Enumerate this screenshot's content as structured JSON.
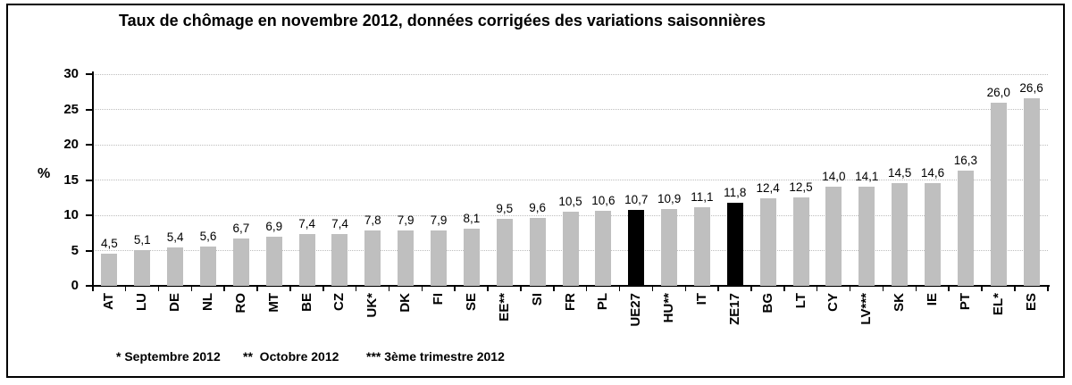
{
  "chart_data": {
    "type": "bar",
    "title": "Taux de chômage en novembre 2012, données corrigées des variations saisonnières",
    "ylabel": "%",
    "ylim": [
      0,
      30
    ],
    "yticks": [
      0,
      5,
      10,
      15,
      20,
      25,
      30
    ],
    "grid": "horizontal-dotted",
    "legend": "none",
    "decimal_separator": ",",
    "categories": [
      "AT",
      "LU",
      "DE",
      "NL",
      "RO",
      "MT",
      "BE",
      "CZ",
      "UK*",
      "DK",
      "FI",
      "SE",
      "EE**",
      "SI",
      "FR",
      "PL",
      "UE27",
      "HU**",
      "IT",
      "ZE17",
      "BG",
      "LT",
      "CY",
      "LV***",
      "SK",
      "IE",
      "PT",
      "EL*",
      "ES"
    ],
    "values": [
      4.5,
      5.1,
      5.4,
      5.6,
      6.7,
      6.9,
      7.4,
      7.4,
      7.8,
      7.9,
      7.9,
      8.1,
      9.5,
      9.6,
      10.5,
      10.6,
      10.7,
      10.9,
      11.1,
      11.8,
      12.4,
      12.5,
      14.0,
      14.1,
      14.5,
      14.6,
      16.3,
      26.0,
      26.6
    ],
    "display_values": [
      "4,5",
      "5,1",
      "5,4",
      "5,6",
      "6,7",
      "6,9",
      "7,4",
      "7,4",
      "7,8",
      "7,9",
      "7,9",
      "8,1",
      "9,5",
      "9,6",
      "10,5",
      "10,6",
      "10,7",
      "10,9",
      "11,1",
      "11,8",
      "12,4",
      "12,5",
      "14,0",
      "14,1",
      "14,5",
      "14,6",
      "16,3",
      "26,0",
      "26,6"
    ],
    "highlighted": [
      "UE27",
      "ZE17"
    ],
    "bar_color": "#bfbfbf",
    "highlight_color": "#000000",
    "axis_color": "#000000",
    "gridline_color": "#bdbdbd",
    "footnotes": [
      "* Septembre 2012",
      "**  Octobre 2012",
      "*** 3ème trimestre 2012"
    ]
  }
}
